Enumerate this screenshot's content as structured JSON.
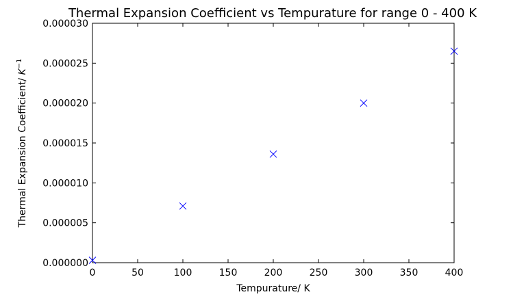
{
  "chart_data": {
    "type": "scatter",
    "title": "Thermal Expansion Coefficient vs Tempurature for range 0 - 400 K",
    "xlabel": "Tempurature/ K",
    "ylabel_text": "Thermal Expansion Coefficient/ ",
    "ylabel_unit": "K",
    "ylabel_unit_exponent": "−1",
    "xlim": [
      0,
      400
    ],
    "ylim": [
      0,
      3e-05
    ],
    "x_ticks": [
      0,
      50,
      100,
      150,
      200,
      250,
      300,
      350,
      400
    ],
    "x_tick_labels": [
      "0",
      "50",
      "100",
      "150",
      "200",
      "250",
      "300",
      "350",
      "400"
    ],
    "y_ticks": [
      0,
      5e-06,
      1e-05,
      1.5e-05,
      2e-05,
      2.5e-05,
      3e-05
    ],
    "y_tick_labels": [
      "0.000000",
      "0.000005",
      "0.000010",
      "0.000015",
      "0.000020",
      "0.000025",
      "0.000030"
    ],
    "grid": false,
    "marker": "x",
    "marker_color": "#0000ff",
    "series": [
      {
        "x": [
          0,
          100,
          200,
          300,
          400
        ],
        "y": [
          3e-07,
          7.1e-06,
          1.36e-05,
          2e-05,
          2.65e-05
        ]
      }
    ]
  }
}
